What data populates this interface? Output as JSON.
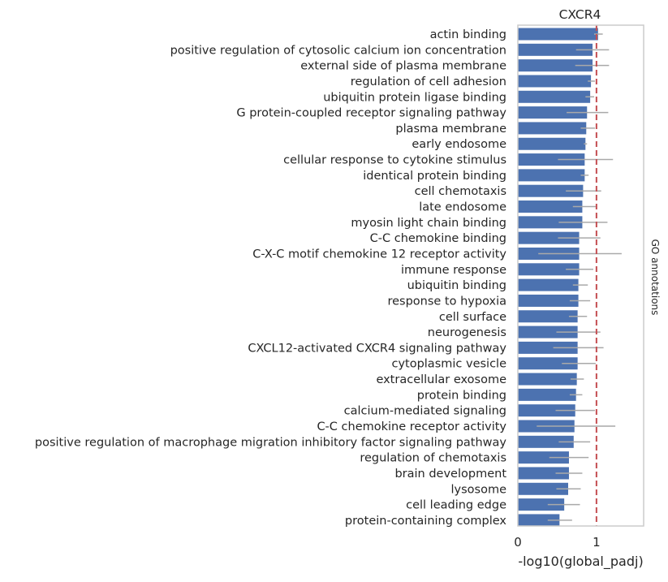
{
  "chart_data": {
    "type": "bar",
    "orientation": "horizontal",
    "title": "CXCR4",
    "xlabel": "-log10(global_padj)",
    "ylabel": "",
    "side_label": "GO annotations",
    "xlim": [
      0,
      1.6
    ],
    "xticks": [
      "0",
      "1"
    ],
    "reference_line": 1,
    "grid": false,
    "colors": {
      "bar": "#4c72b0",
      "error": "#a9a9a9",
      "reference": "#c44e52",
      "frame": "#cccccc"
    },
    "categories": [
      "actin binding",
      "positive regulation of cytosolic calcium ion concentration",
      "external side of plasma membrane",
      "regulation of cell adhesion",
      "ubiquitin protein ligase binding",
      "G protein-coupled receptor signaling pathway",
      "plasma membrane",
      "early endosome",
      "cellular response to cytokine stimulus",
      "identical protein binding",
      "cell chemotaxis",
      "late endosome",
      "myosin light chain binding",
      "C-C chemokine binding",
      "C-X-C motif chemokine 12 receptor activity",
      "immune response",
      "ubiquitin binding",
      "response to hypoxia",
      "cell surface",
      "neurogenesis",
      "CXCL12-activated CXCR4 signaling pathway",
      "cytoplasmic vesicle",
      "extracellular exosome",
      "protein binding",
      "calcium-mediated signaling",
      "C-C chemokine receptor activity",
      "positive regulation of macrophage migration inhibitory factor signaling pathway",
      "regulation of chemotaxis",
      "brain development",
      "lysosome",
      "cell leading edge",
      "protein-containing complex"
    ],
    "values": [
      1.02,
      0.95,
      0.95,
      0.93,
      0.92,
      0.88,
      0.87,
      0.86,
      0.85,
      0.85,
      0.83,
      0.82,
      0.82,
      0.78,
      0.78,
      0.78,
      0.77,
      0.77,
      0.76,
      0.76,
      0.76,
      0.76,
      0.75,
      0.74,
      0.73,
      0.72,
      0.71,
      0.65,
      0.65,
      0.64,
      0.59,
      0.53
    ],
    "error_low": [
      0.97,
      0.74,
      0.73,
      0.89,
      0.86,
      0.62,
      0.8,
      0.84,
      0.51,
      0.8,
      0.61,
      0.7,
      0.52,
      0.51,
      0.26,
      0.61,
      0.7,
      0.66,
      0.65,
      0.49,
      0.45,
      0.56,
      0.67,
      0.66,
      0.48,
      0.24,
      0.52,
      0.4,
      0.48,
      0.49,
      0.38,
      0.38
    ],
    "error_high": [
      1.08,
      1.16,
      1.16,
      0.98,
      0.97,
      1.15,
      0.98,
      0.88,
      1.21,
      0.9,
      1.06,
      0.99,
      1.14,
      1.05,
      1.32,
      0.96,
      0.89,
      0.92,
      0.88,
      1.05,
      1.09,
      0.99,
      0.84,
      0.82,
      0.98,
      1.24,
      0.92,
      0.9,
      0.82,
      0.8,
      0.79,
      0.69
    ]
  }
}
